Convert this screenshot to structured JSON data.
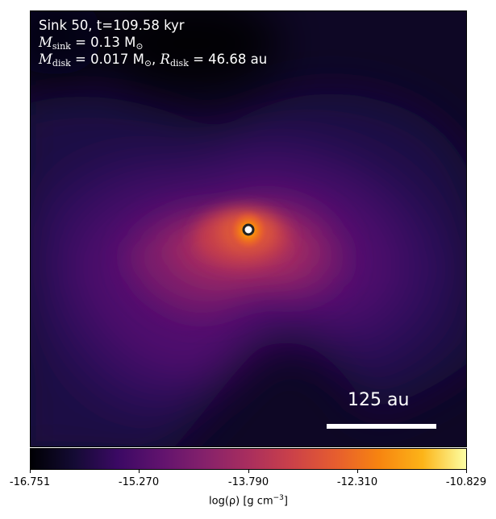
{
  "annotations": {
    "line1": "Sink 50, t=109.58 kyr",
    "m_sink_symbol": "M",
    "m_sink_sub": "sink",
    "m_sink_value": " = 0.13 M",
    "m_sun_sub": "⊙",
    "m_disk_symbol": "M",
    "m_disk_sub": "disk",
    "m_disk_value": " = 0.017 M",
    "m_sun_sub2": "⊙",
    "r_disk_sep": ",  ",
    "r_disk_symbol": "R",
    "r_disk_sub": "disk",
    "r_disk_value": " = 46.68 au"
  },
  "scale_bar": {
    "label": "125 au"
  },
  "colorbar": {
    "colormap": "inferno",
    "ticks": [
      "-16.751",
      "-15.270",
      "-13.790",
      "-12.310",
      "-10.829"
    ],
    "label_prefix": "log(ρ) [g cm",
    "label_exp": "−3",
    "label_suffix": "]"
  },
  "colors": {
    "sink_marker": "#ffffff",
    "background": "#05030f"
  }
}
